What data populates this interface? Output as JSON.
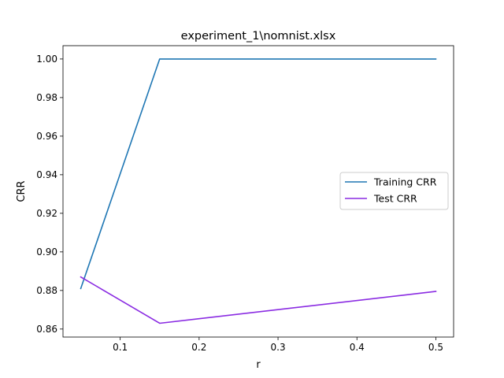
{
  "chart_data": {
    "type": "line",
    "title": "experiment_1\\nomnist.xlsx",
    "xlabel": "r",
    "ylabel": "CRR",
    "xlim": [
      0.0275,
      0.5225
    ],
    "ylim": [
      0.85585,
      1.0069
    ],
    "xticks": [
      0.1,
      0.2,
      0.3,
      0.4,
      0.5
    ],
    "xtick_labels": [
      "0.1",
      "0.2",
      "0.3",
      "0.4",
      "0.5"
    ],
    "yticks": [
      0.86,
      0.88,
      0.9,
      0.92,
      0.94,
      0.96,
      0.98,
      1.0
    ],
    "ytick_labels": [
      "0.86",
      "0.88",
      "0.90",
      "0.92",
      "0.94",
      "0.96",
      "0.98",
      "1.00"
    ],
    "grid": false,
    "legend_position": "center-right",
    "series": [
      {
        "name": "Training CRR",
        "color": "#1f77b4",
        "x": [
          0.05,
          0.15,
          0.5
        ],
        "y": [
          0.881,
          1.0,
          1.0
        ]
      },
      {
        "name": "Test CRR",
        "color": "#8a2be2",
        "x": [
          0.05,
          0.15,
          0.5
        ],
        "y": [
          0.887,
          0.863,
          0.8795
        ]
      }
    ]
  }
}
